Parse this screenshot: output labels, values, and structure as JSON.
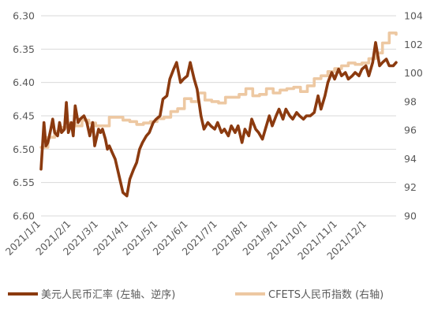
{
  "chart_data": {
    "type": "line",
    "title": "",
    "xlabel": "",
    "x_ticks": [
      "2021/1/1",
      "2021/2/1",
      "2021/3/1",
      "2021/4/1",
      "2021/5/1",
      "2021/6/1",
      "2021/7/1",
      "2021/8/1",
      "2021/9/1",
      "2021/10/1",
      "2021/11/1",
      "2021/12/1"
    ],
    "y_left": {
      "ylim": [
        6.3,
        6.6
      ],
      "inverted": true,
      "ticks": [
        "6.30",
        "6.35",
        "6.40",
        "6.45",
        "6.50",
        "6.55",
        "6.60"
      ]
    },
    "y_right": {
      "ylim": [
        90,
        104
      ],
      "ticks": [
        "104",
        "102",
        "100",
        "98",
        "96",
        "94",
        "92",
        "90"
      ]
    },
    "grid": "horizontal",
    "legend_position": "bottom",
    "series": [
      {
        "name": "美元人民币汇率 (左轴、逆序)",
        "axis": "left",
        "color": "#8B3A0F",
        "x": [
          "2021/1/1",
          "2021/1/4",
          "2021/1/6",
          "2021/1/8",
          "2021/1/11",
          "2021/1/13",
          "2021/1/15",
          "2021/1/18",
          "2021/1/20",
          "2021/1/22",
          "2021/1/25",
          "2021/1/27",
          "2021/1/29",
          "2021/2/1",
          "2021/2/3",
          "2021/2/5",
          "2021/2/8",
          "2021/2/10",
          "2021/2/14",
          "2021/2/17",
          "2021/2/20",
          "2021/2/23",
          "2021/2/25",
          "2021/3/1",
          "2021/3/3",
          "2021/3/5",
          "2021/3/8",
          "2021/3/10",
          "2021/3/12",
          "2021/3/15",
          "2021/3/18",
          "2021/3/22",
          "2021/3/26",
          "2021/3/30",
          "2021/4/2",
          "2021/4/6",
          "2021/4/9",
          "2021/4/12",
          "2021/4/15",
          "2021/4/19",
          "2021/4/22",
          "2021/4/26",
          "2021/4/29",
          "2021/5/3",
          "2021/5/6",
          "2021/5/10",
          "2021/5/13",
          "2021/5/17",
          "2021/5/20",
          "2021/5/24",
          "2021/5/27",
          "2021/5/31",
          "2021/6/3",
          "2021/6/7",
          "2021/6/10",
          "2021/6/14",
          "2021/6/17",
          "2021/6/21",
          "2021/6/24",
          "2021/6/28",
          "2021/7/1",
          "2021/7/5",
          "2021/7/8",
          "2021/7/12",
          "2021/7/15",
          "2021/7/19",
          "2021/7/22",
          "2021/7/26",
          "2021/7/29",
          "2021/8/2",
          "2021/8/5",
          "2021/8/9",
          "2021/8/12",
          "2021/8/16",
          "2021/8/19",
          "2021/8/23",
          "2021/8/26",
          "2021/8/30",
          "2021/9/2",
          "2021/9/6",
          "2021/9/9",
          "2021/9/13",
          "2021/9/16",
          "2021/9/20",
          "2021/9/23",
          "2021/9/27",
          "2021/9/30",
          "2021/10/4",
          "2021/10/8",
          "2021/10/12",
          "2021/10/15",
          "2021/10/19",
          "2021/10/22",
          "2021/10/26",
          "2021/10/29",
          "2021/11/2",
          "2021/11/5",
          "2021/11/9",
          "2021/11/12",
          "2021/11/16",
          "2021/11/19",
          "2021/11/23",
          "2021/11/26",
          "2021/11/30",
          "2021/12/3",
          "2021/12/7",
          "2021/12/10",
          "2021/12/14",
          "2021/12/17",
          "2021/12/21",
          "2021/12/24",
          "2021/12/28",
          "2021/12/31"
        ],
        "values": [
          6.53,
          6.46,
          6.495,
          6.49,
          6.47,
          6.455,
          6.475,
          6.48,
          6.46,
          6.475,
          6.47,
          6.43,
          6.475,
          6.46,
          6.48,
          6.435,
          6.46,
          6.455,
          6.45,
          6.46,
          6.48,
          6.46,
          6.495,
          6.47,
          6.475,
          6.47,
          6.485,
          6.5,
          6.495,
          6.505,
          6.515,
          6.54,
          6.565,
          6.57,
          6.545,
          6.53,
          6.52,
          6.5,
          6.49,
          6.48,
          6.475,
          6.46,
          6.455,
          6.45,
          6.425,
          6.42,
          6.395,
          6.38,
          6.37,
          6.4,
          6.395,
          6.39,
          6.37,
          6.395,
          6.41,
          6.45,
          6.47,
          6.46,
          6.465,
          6.47,
          6.46,
          6.475,
          6.47,
          6.48,
          6.465,
          6.475,
          6.465,
          6.49,
          6.47,
          6.48,
          6.455,
          6.47,
          6.475,
          6.485,
          6.47,
          6.45,
          6.465,
          6.45,
          6.44,
          6.455,
          6.44,
          6.45,
          6.455,
          6.445,
          6.45,
          6.455,
          6.45,
          6.45,
          6.445,
          6.42,
          6.44,
          6.42,
          6.4,
          6.385,
          6.395,
          6.38,
          6.39,
          6.385,
          6.395,
          6.39,
          6.385,
          6.39,
          6.38,
          6.375,
          6.39,
          6.37,
          6.34,
          6.375,
          6.37,
          6.365,
          6.375,
          6.375,
          6.37
        ]
      },
      {
        "name": "CFETS人民币指数 (右轴)",
        "axis": "right",
        "color": "#EDC8A2",
        "x": [
          "2021/1/1",
          "2021/1/8",
          "2021/1/15",
          "2021/1/22",
          "2021/1/29",
          "2021/2/5",
          "2021/2/12",
          "2021/2/19",
          "2021/2/26",
          "2021/3/5",
          "2021/3/12",
          "2021/3/19",
          "2021/3/26",
          "2021/4/2",
          "2021/4/9",
          "2021/4/16",
          "2021/4/23",
          "2021/4/30",
          "2021/5/7",
          "2021/5/14",
          "2021/5/21",
          "2021/5/28",
          "2021/6/4",
          "2021/6/11",
          "2021/6/18",
          "2021/6/25",
          "2021/7/2",
          "2021/7/9",
          "2021/7/16",
          "2021/7/23",
          "2021/7/30",
          "2021/8/6",
          "2021/8/13",
          "2021/8/20",
          "2021/8/27",
          "2021/9/3",
          "2021/9/10",
          "2021/9/17",
          "2021/9/24",
          "2021/10/1",
          "2021/10/8",
          "2021/10/15",
          "2021/10/22",
          "2021/10/29",
          "2021/11/5",
          "2021/11/12",
          "2021/11/19",
          "2021/11/26",
          "2021/12/3",
          "2021/12/10",
          "2021/12/17",
          "2021/12/24",
          "2021/12/31"
        ],
        "values": [
          94.8,
          95.5,
          95.9,
          96.2,
          96.5,
          96.3,
          96.7,
          96.5,
          96.3,
          96.3,
          96.9,
          96.9,
          96.7,
          96.6,
          96.4,
          96.5,
          96.6,
          96.8,
          96.9,
          97.3,
          97.5,
          98.2,
          98.0,
          98.6,
          98.1,
          98.0,
          97.9,
          98.3,
          98.3,
          98.5,
          98.9,
          98.4,
          98.5,
          98.9,
          98.6,
          98.8,
          98.9,
          99.0,
          98.7,
          99.1,
          99.6,
          99.8,
          100.1,
          100.3,
          100.5,
          100.7,
          100.6,
          100.7,
          101.0,
          101.4,
          102.1,
          102.8,
          102.7
        ]
      }
    ]
  }
}
